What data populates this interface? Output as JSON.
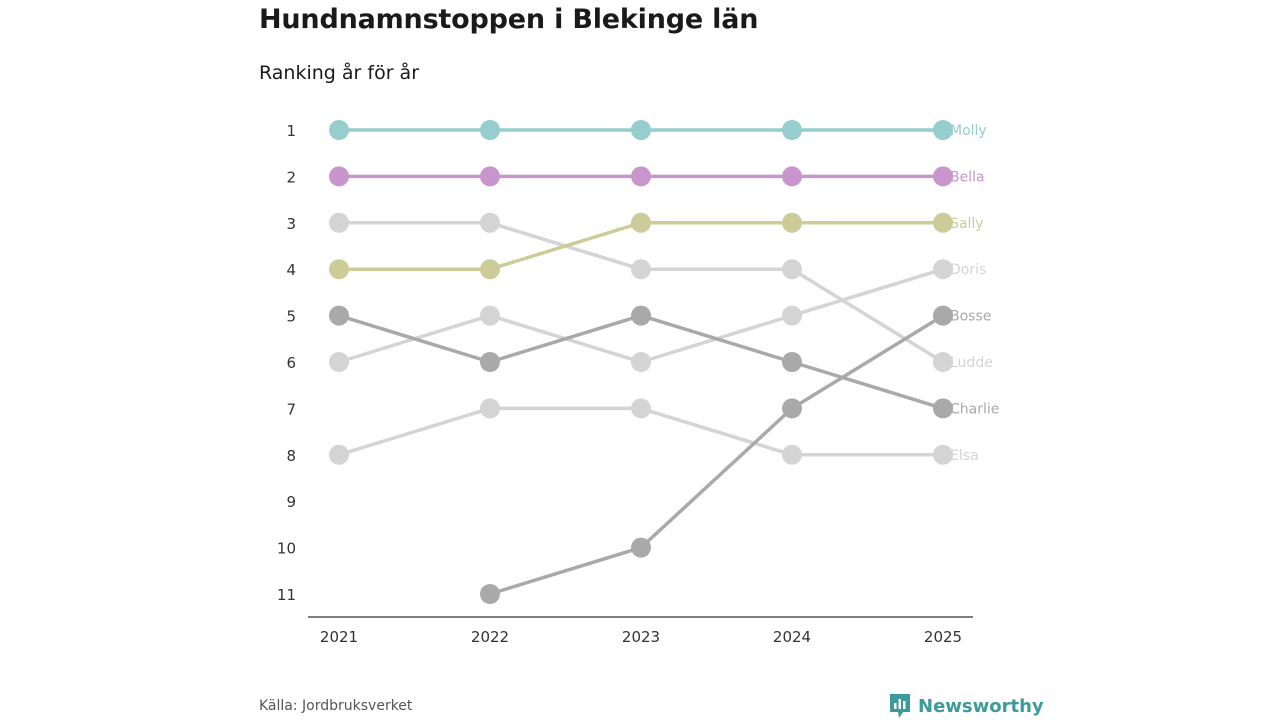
{
  "title": "Hundnamnstoppen i Blekinge län",
  "subtitle": "Ranking år för år",
  "source": "Källa: Jordbruksverket",
  "brand": "Newsworthy",
  "colors": {
    "brand": "#3c9a9a",
    "axis": "#333333"
  },
  "chart_data": {
    "type": "line",
    "title": "Hundnamnstoppen i Blekinge län",
    "subtitle": "Ranking år för år",
    "xlabel": "",
    "ylabel": "",
    "categories": [
      "2021",
      "2022",
      "2023",
      "2024",
      "2025"
    ],
    "y_ticks": [
      "1",
      "2",
      "3",
      "4",
      "5",
      "6",
      "7",
      "8",
      "9",
      "10",
      "11"
    ],
    "ylim": [
      1,
      11
    ],
    "y_inverted": true,
    "grid": false,
    "series": [
      {
        "name": "Elsa",
        "values": [
          8,
          7,
          7,
          8,
          8
        ],
        "color": "#d4d4d4"
      },
      {
        "name": "Ludde",
        "values": [
          3,
          3,
          4,
          4,
          6
        ],
        "color": "#d4d4d4"
      },
      {
        "name": "Doris",
        "values": [
          6,
          5,
          6,
          5,
          4
        ],
        "color": "#d4d4d4"
      },
      {
        "name": "Charlie",
        "values": [
          5,
          6,
          5,
          6,
          7
        ],
        "color": "#a9a9a9"
      },
      {
        "name": "Bosse",
        "values": [
          null,
          11,
          10,
          7,
          5
        ],
        "color": "#a9a9a9"
      },
      {
        "name": "Sally",
        "values": [
          4,
          4,
          3,
          3,
          3
        ],
        "color": "#cccc99"
      },
      {
        "name": "Bella",
        "values": [
          2,
          2,
          2,
          2,
          2
        ],
        "color": "#c896cd"
      },
      {
        "name": "Molly",
        "values": [
          1,
          1,
          1,
          1,
          1
        ],
        "color": "#96cdcd"
      }
    ]
  }
}
